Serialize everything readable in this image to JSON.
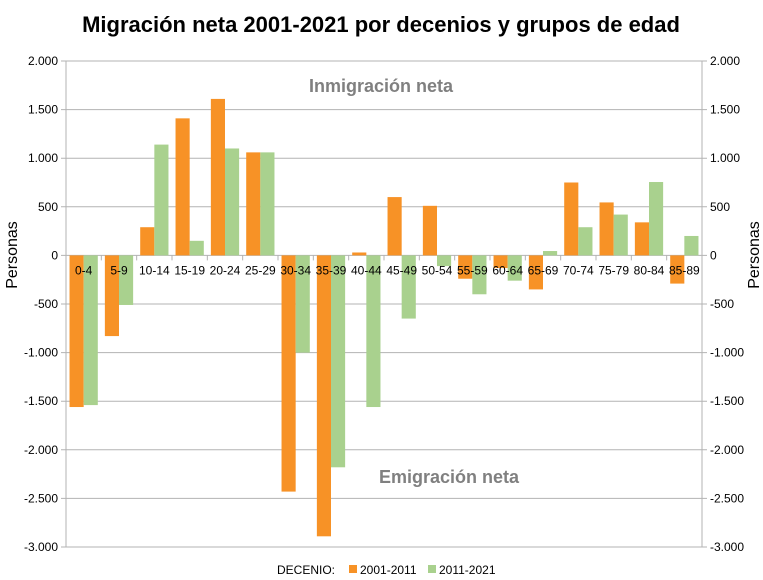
{
  "chart_data": {
    "type": "bar",
    "title": "Migración neta 2001-2021 por decenios y grupos de edad",
    "xlabel": "",
    "ylabel": "Personas",
    "ylabel_right": "Personas",
    "ylim": [
      -3000,
      2000
    ],
    "ytick_step": 500,
    "yticks": [
      "2.000",
      "1.500",
      "1.000",
      "500",
      "0",
      "-500",
      "-1.000",
      "-1.500",
      "-2.000",
      "-2.500",
      "-3.000"
    ],
    "grid": true,
    "categories": [
      "0-4",
      "5-9",
      "10-14",
      "15-19",
      "20-24",
      "25-29",
      "30-34",
      "35-39",
      "40-44",
      "45-49",
      "50-54",
      "55-59",
      "60-64",
      "65-69",
      "70-74",
      "75-79",
      "80-84",
      "85-89"
    ],
    "series": [
      {
        "name": "2001-2011",
        "color": "#f79226",
        "values": [
          -1560,
          -830,
          290,
          1410,
          1610,
          1060,
          -2430,
          -2890,
          30,
          600,
          510,
          -240,
          -130,
          -350,
          750,
          545,
          340,
          -290
        ]
      },
      {
        "name": "2011-2021",
        "color": "#a9d18e",
        "values": [
          -1540,
          -510,
          1140,
          150,
          1100,
          1060,
          -1000,
          -2180,
          -1560,
          -650,
          -110,
          -400,
          -260,
          45,
          290,
          420,
          755,
          200
        ]
      }
    ],
    "legend": {
      "title": "DECENIO:",
      "placement": "bottom"
    },
    "annotations": [
      {
        "text": "Inmigración neta",
        "position": "top-center"
      },
      {
        "text": "Emigración neta",
        "position": "bottom-center"
      }
    ]
  }
}
